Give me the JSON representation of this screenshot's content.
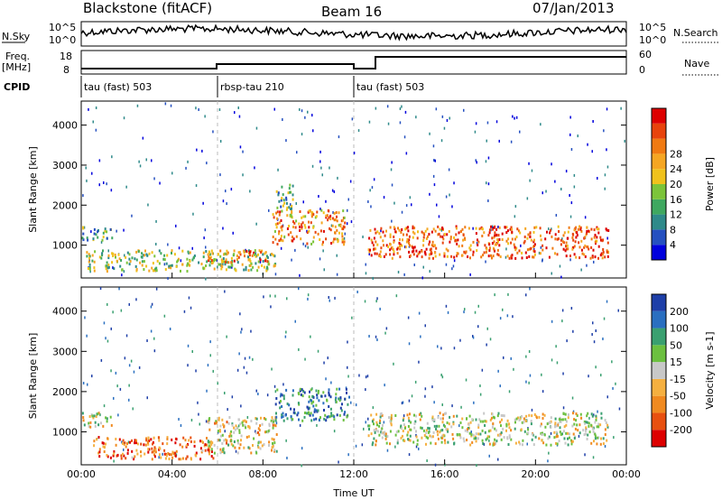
{
  "header": {
    "station": "Blackstone (fitACF)",
    "beam": "Beam 16",
    "date": "07/Jan/2013"
  },
  "summary": {
    "nsky_label": "N.Sky",
    "nsearch_label": "N.Search",
    "freq_label_1": "Freq.",
    "freq_label_2": "[MHz]",
    "nave_label": "Nave",
    "cpid_label": "CPID",
    "power_ticks_left": [
      "10^5",
      "10^0"
    ],
    "power_ticks_right": [
      "10^5",
      "10^0"
    ],
    "freq_ticks": [
      "18",
      "8"
    ],
    "nave_ticks": [
      "60",
      "0"
    ],
    "cpid_segments": [
      {
        "label": "tau (fast) 503",
        "start_hour": 0,
        "end_hour": 6
      },
      {
        "label": "rbsp-tau 210",
        "start_hour": 6,
        "end_hour": 12
      },
      {
        "label": "tau (fast) 503",
        "start_hour": 12,
        "end_hour": 24
      }
    ]
  },
  "chart_data": [
    {
      "type": "heatmap",
      "title": "",
      "xlabel": "Time UT",
      "ylabel": "Slant Range [km]",
      "xlim": [
        0,
        24
      ],
      "ylim": [
        180,
        4600
      ],
      "x_ticks": [
        "00:00",
        "04:00",
        "08:00",
        "12:00",
        "16:00",
        "20:00",
        "00:00"
      ],
      "y_ticks": [
        1000,
        2000,
        3000,
        4000
      ],
      "colorbar": {
        "label": "Power [dB]",
        "ticks": [
          "4",
          "8",
          "12",
          "16",
          "20",
          "24",
          "28"
        ],
        "colors": [
          "#0000dd",
          "#2550c0",
          "#2f8a8a",
          "#3fa860",
          "#7cc43a",
          "#f0c21c",
          "#f5a623",
          "#f07a12",
          "#e8430c",
          "#dd0000"
        ]
      },
      "regions": [
        {
          "t0": 0.0,
          "t1": 1.4,
          "r0": 1150,
          "r1": 1500,
          "level": 0.35
        },
        {
          "t0": 0.2,
          "t1": 8.6,
          "r0": 380,
          "r1": 900,
          "level": 0.45
        },
        {
          "t0": 8.4,
          "t1": 11.6,
          "r0": 1050,
          "r1": 1900,
          "level": 0.7
        },
        {
          "t0": 8.5,
          "t1": 9.3,
          "r0": 1900,
          "r1": 2600,
          "level": 0.35
        },
        {
          "t0": 12.6,
          "t1": 23.2,
          "r0": 700,
          "r1": 1500,
          "level": 0.8
        },
        {
          "t0": 5.5,
          "t1": 8.4,
          "r0": 600,
          "r1": 900,
          "level": 0.7
        }
      ]
    },
    {
      "type": "heatmap",
      "title": "",
      "xlabel": "Time UT",
      "ylabel": "Slant Range [km]",
      "xlim": [
        0,
        24
      ],
      "ylim": [
        180,
        4600
      ],
      "x_ticks": [
        "00:00",
        "04:00",
        "08:00",
        "12:00",
        "16:00",
        "20:00",
        "00:00"
      ],
      "y_ticks": [
        1000,
        2000,
        3000,
        4000
      ],
      "colorbar": {
        "label": "Velocity [m s-1]",
        "ticks": [
          "200",
          "100",
          "50",
          "15",
          "-15",
          "-50",
          "-100",
          "-200"
        ],
        "colors": [
          "#1e3fa8",
          "#2a6fc0",
          "#3aa070",
          "#6cc040",
          "#c8c8c8",
          "#f5b040",
          "#f08a20",
          "#e85010",
          "#dd0000"
        ]
      },
      "regions": [
        {
          "t0": 0.0,
          "t1": 1.4,
          "r0": 1150,
          "r1": 1500,
          "level": 0.5
        },
        {
          "t0": 0.5,
          "t1": 5.8,
          "r0": 350,
          "r1": 900,
          "level": 0.8
        },
        {
          "t0": 5.5,
          "t1": 8.6,
          "r0": 500,
          "r1": 1400,
          "level": 0.55
        },
        {
          "t0": 8.5,
          "t1": 11.8,
          "r0": 1300,
          "r1": 2100,
          "level": 0.2
        },
        {
          "t0": 12.6,
          "t1": 23.2,
          "r0": 700,
          "r1": 1500,
          "level": 0.5
        }
      ]
    }
  ]
}
